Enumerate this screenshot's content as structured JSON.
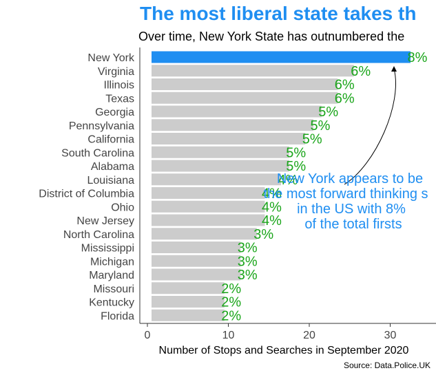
{
  "colors": {
    "highlight": "#1f8ef1",
    "bar": "#cccccc",
    "label": "#1aa51a",
    "title": "#1f8ef1",
    "annotation": "#1f8ef1"
  },
  "header": {
    "title": "The most liberal state takes th",
    "subtitle": "Over time, New York State has outnumbered the"
  },
  "source": "Source: Data.Police.UK",
  "chart_data": {
    "type": "bar",
    "orientation": "horizontal",
    "xlabel": "Number of Stops and Searches in September 2020",
    "xlim": [
      0,
      32
    ],
    "xticks": [
      0,
      10,
      20,
      30
    ],
    "grid": false,
    "categories": [
      "New York",
      "Virginia",
      "Illinois",
      "Texas",
      "Georgia",
      "Pennsylvania",
      "California",
      "South Carolina",
      "Alabama",
      "Louisiana",
      "District of Columbia",
      "Ohio",
      "New Jersey",
      "North Carolina",
      "Mississippi",
      "Michigan",
      "Maryland",
      "Missouri",
      "Kentucky",
      "Florida"
    ],
    "values": [
      32,
      25,
      23,
      23,
      21,
      20,
      19,
      17,
      17,
      16,
      14,
      14,
      14,
      13,
      11,
      11,
      11,
      9,
      9,
      9
    ],
    "labels": [
      "8%",
      "6%",
      "6%",
      "6%",
      "5%",
      "5%",
      "5%",
      "5%",
      "5%",
      "4%",
      "4%",
      "4%",
      "4%",
      "3%",
      "3%",
      "3%",
      "3%",
      "2%",
      "2%",
      "2%"
    ],
    "highlight": "New York",
    "annotation": {
      "lines": [
        "New York appears to be",
        "the most forward thinking s",
        "in the US with 8%",
        "of the total firsts"
      ]
    }
  }
}
